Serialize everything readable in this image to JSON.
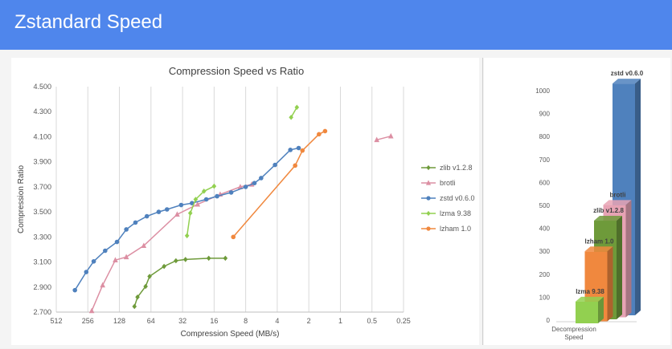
{
  "slide": {
    "title": "Zstandard Speed"
  },
  "chart_data": [
    {
      "type": "scatter",
      "title": "Compression Speed vs Ratio",
      "xlabel": "Compression Speed (MB/s)",
      "ylabel": "Compression Ratio",
      "x_scale": "log2-reversed",
      "xlim": [
        512,
        0.25
      ],
      "ylim": [
        2.7,
        4.5
      ],
      "x_ticks": [
        512,
        256,
        128,
        64,
        32,
        16,
        8,
        4,
        2,
        1,
        0.5,
        0.25
      ],
      "x_tick_labels": [
        "512",
        "256",
        "128",
        "64",
        "32",
        "16",
        "8",
        "4",
        "2",
        "1",
        "0.5",
        "0.25"
      ],
      "y_ticks": [
        2.7,
        2.9,
        3.1,
        3.3,
        3.5,
        3.7,
        3.9,
        4.1,
        4.3,
        4.5
      ],
      "y_tick_labels": [
        "2.700",
        "2.900",
        "3.100",
        "3.300",
        "3.500",
        "3.700",
        "3.900",
        "4.100",
        "4.300",
        "4.500"
      ],
      "grid": "vertical",
      "legend": "right",
      "series": [
        {
          "name": "zlib v1.2.8",
          "color": "#6e9a3a",
          "marker": "diamond",
          "points": [
            [
              92,
              2.745
            ],
            [
              86,
              2.82
            ],
            [
              72,
              2.905
            ],
            [
              66,
              2.985
            ],
            [
              48,
              3.065
            ],
            [
              37,
              3.11
            ],
            [
              30,
              3.12
            ],
            [
              18,
              3.13
            ],
            [
              12.5,
              3.13
            ]
          ]
        },
        {
          "name": "brotli",
          "color": "#dc8fa3",
          "marker": "triangle",
          "points": [
            [
              235,
              2.71
            ],
            [
              185,
              2.915
            ],
            [
              140,
              3.115
            ],
            [
              110,
              3.14
            ],
            [
              75,
              3.23
            ],
            [
              36,
              3.48
            ],
            [
              23,
              3.56
            ],
            [
              14,
              3.64
            ],
            [
              9,
              3.7
            ],
            [
              7,
              3.72
            ],
            [
              0.45,
              4.075
            ],
            [
              0.33,
              4.105
            ]
          ]
        },
        {
          "name": "zstd v0.6.0",
          "color": "#4f81bd",
          "marker": "circle",
          "points": [
            [
              340,
              2.875
            ],
            [
              265,
              3.02
            ],
            [
              225,
              3.105
            ],
            [
              175,
              3.19
            ],
            [
              135,
              3.26
            ],
            [
              110,
              3.36
            ],
            [
              90,
              3.415
            ],
            [
              70,
              3.465
            ],
            [
              54,
              3.5
            ],
            [
              45,
              3.52
            ],
            [
              33,
              3.555
            ],
            [
              26,
              3.57
            ],
            [
              19,
              3.6
            ],
            [
              15,
              3.625
            ],
            [
              11,
              3.655
            ],
            [
              8,
              3.7
            ],
            [
              6.6,
              3.73
            ],
            [
              5.7,
              3.77
            ],
            [
              4.2,
              3.875
            ],
            [
              3,
              3.995
            ],
            [
              2.5,
              4.01
            ]
          ]
        },
        {
          "name": "lzma 9.38",
          "color": "#92d050",
          "marker": "diamond",
          "points": [
            [
              29,
              3.31
            ],
            [
              27,
              3.49
            ],
            [
              24,
              3.6
            ],
            [
              20,
              3.665
            ],
            [
              16,
              3.705
            ],
            [
              2.95,
              4.255
            ],
            [
              2.6,
              4.335
            ]
          ]
        },
        {
          "name": "lzham 1.0",
          "color": "#f0883e",
          "marker": "circle",
          "points": [
            [
              10.5,
              3.3
            ],
            [
              2.7,
              3.87
            ],
            [
              2.3,
              3.99
            ],
            [
              1.6,
              4.12
            ],
            [
              1.4,
              4.145
            ]
          ]
        }
      ]
    },
    {
      "type": "bar",
      "xlabel": "Decompression Speed",
      "ylim": [
        0,
        1000
      ],
      "y_ticks": [
        0,
        100,
        200,
        300,
        400,
        500,
        600,
        700,
        800,
        900,
        1000
      ],
      "y_tick_labels": [
        "0",
        "100",
        "200",
        "300",
        "400",
        "500",
        "600",
        "700",
        "800",
        "900",
        "1000"
      ],
      "categories": [
        "lzma 9.38",
        "lzham 1.0",
        "zlib v1.2.8",
        "brotli",
        "zstd v0.6.0"
      ],
      "values": [
        95,
        305,
        430,
        490,
        1010
      ],
      "colors": [
        "#92d050",
        "#f0883e",
        "#6e9a3a",
        "#e7a3b4",
        "#4f81bd"
      ]
    }
  ]
}
